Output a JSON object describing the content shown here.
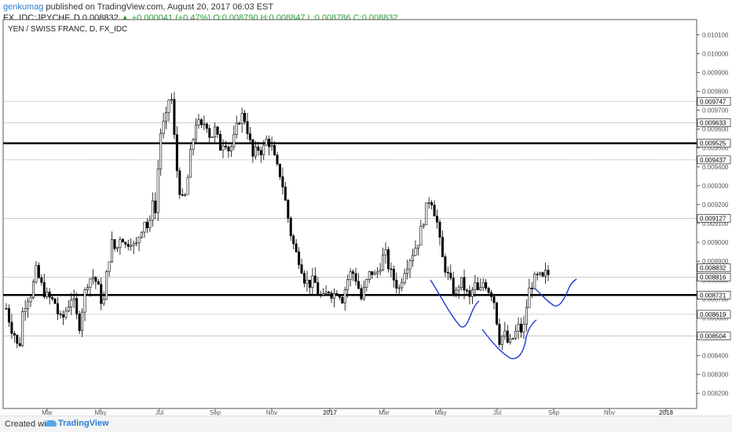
{
  "header": {
    "user": "genkumag",
    "published": " published on TradingView.com, August 20, 2017 06:03 EST",
    "symbol_line": "FX_IDC:JPYCHF, D  0.008832 ",
    "change": "▲ +0.000041 (+0.47%)",
    "ohlc": " O:0.008790 H:0.008847 L:0.008786 C:0.008832"
  },
  "chart_data": {
    "type": "candlestick",
    "title": "YEN / SWISS FRANC, D, FX_IDC",
    "x_tick_labels": [
      "Mar",
      "May",
      "Jul",
      "Sep",
      "Nov",
      "2017",
      "Mar",
      "May",
      "Jul",
      "Sep",
      "Nov",
      "2018"
    ],
    "y_tick_labels": [
      "0.010100",
      "0.010000",
      "0.009900",
      "0.009800",
      "0.009700",
      "0.009600",
      "0.009500",
      "0.009400",
      "0.009300",
      "0.009200",
      "0.009100",
      "0.009000",
      "0.008900",
      "0.008800",
      "0.008700",
      "0.008600",
      "0.008500",
      "0.008400",
      "0.008300",
      "0.008200"
    ],
    "y_ticks": [
      0.0101,
      0.01,
      0.0099,
      0.0098,
      0.0097,
      0.0096,
      0.0095,
      0.0094,
      0.0093,
      0.0092,
      0.0091,
      0.009,
      0.0089,
      0.0088,
      0.0087,
      0.0086,
      0.0085,
      0.0084,
      0.0083,
      0.0082
    ],
    "ylim": [
      0.00812,
      0.01018
    ],
    "horizontal_lines": [
      {
        "value": 0.009747,
        "label": "0.009747",
        "style": "dotted"
      },
      {
        "value": 0.009633,
        "label": "0.009633",
        "style": "dotted"
      },
      {
        "value": 0.009525,
        "label": "0.009525",
        "style": "bold"
      },
      {
        "value": 0.009437,
        "label": "0.009437",
        "style": "dotted"
      },
      {
        "value": 0.009127,
        "label": "0.009127",
        "style": "dotted"
      },
      {
        "value": 0.008816,
        "label": "0.008816",
        "style": "dotted"
      },
      {
        "value": 0.008721,
        "label": "0.008721",
        "style": "bold"
      },
      {
        "value": 0.008619,
        "label": "0.008619",
        "style": "dotted"
      },
      {
        "value": 0.008504,
        "label": "0.008504",
        "style": "dotted"
      }
    ],
    "last_price": {
      "value": 0.008832,
      "label": "0.008832"
    },
    "price_path": [
      [
        0,
        0.00865
      ],
      [
        6,
        0.00855
      ],
      [
        12,
        0.0085
      ],
      [
        16,
        0.0084
      ],
      [
        20,
        0.00862
      ],
      [
        26,
        0.0087
      ],
      [
        32,
        0.00873
      ],
      [
        38,
        0.00885
      ],
      [
        44,
        0.00878
      ],
      [
        50,
        0.00872
      ],
      [
        56,
        0.0087
      ],
      [
        62,
        0.00868
      ],
      [
        66,
        0.00862
      ],
      [
        70,
        0.00858
      ],
      [
        74,
        0.00862
      ],
      [
        78,
        0.00866
      ],
      [
        84,
        0.00872
      ],
      [
        90,
        0.0086
      ],
      [
        94,
        0.00855
      ],
      [
        98,
        0.0087
      ],
      [
        104,
        0.0088
      ],
      [
        110,
        0.00882
      ],
      [
        116,
        0.00878
      ],
      [
        120,
        0.0087
      ],
      [
        124,
        0.00868
      ],
      [
        128,
        0.00884
      ],
      [
        134,
        0.009
      ],
      [
        140,
        0.00895
      ],
      [
        146,
        0.00905
      ],
      [
        152,
        0.00898
      ],
      [
        158,
        0.00902
      ],
      [
        164,
        0.00896
      ],
      [
        170,
        0.00905
      ],
      [
        176,
        0.00912
      ],
      [
        182,
        0.00905
      ],
      [
        186,
        0.00925
      ],
      [
        190,
        0.00915
      ],
      [
        194,
        0.00945
      ],
      [
        198,
        0.00965
      ],
      [
        202,
        0.0096
      ],
      [
        206,
        0.00975
      ],
      [
        210,
        0.00978
      ],
      [
        214,
        0.00955
      ],
      [
        218,
        0.00935
      ],
      [
        222,
        0.00925
      ],
      [
        226,
        0.0092
      ],
      [
        230,
        0.0093
      ],
      [
        234,
        0.00945
      ],
      [
        238,
        0.00955
      ],
      [
        242,
        0.00965
      ],
      [
        248,
        0.0096
      ],
      [
        254,
        0.00965
      ],
      [
        260,
        0.00955
      ],
      [
        266,
        0.0096
      ],
      [
        272,
        0.0095
      ],
      [
        278,
        0.00955
      ],
      [
        284,
        0.00948
      ],
      [
        290,
        0.00955
      ],
      [
        296,
        0.00965
      ],
      [
        302,
        0.00968
      ],
      [
        308,
        0.00958
      ],
      [
        314,
        0.00945
      ],
      [
        320,
        0.0095
      ],
      [
        326,
        0.00948
      ],
      [
        332,
        0.00955
      ],
      [
        338,
        0.0095
      ],
      [
        344,
        0.0094
      ],
      [
        350,
        0.00935
      ],
      [
        356,
        0.0092
      ],
      [
        362,
        0.00905
      ],
      [
        368,
        0.00895
      ],
      [
        374,
        0.0089
      ],
      [
        380,
        0.0088
      ],
      [
        386,
        0.00878
      ],
      [
        392,
        0.0088
      ],
      [
        398,
        0.00872
      ],
      [
        404,
        0.0087
      ],
      [
        410,
        0.00875
      ],
      [
        416,
        0.00872
      ],
      [
        422,
        0.00875
      ],
      [
        428,
        0.0087
      ],
      [
        434,
        0.0088
      ],
      [
        440,
        0.00885
      ],
      [
        446,
        0.0088
      ],
      [
        452,
        0.0087
      ],
      [
        458,
        0.00878
      ],
      [
        464,
        0.00885
      ],
      [
        470,
        0.00882
      ],
      [
        476,
        0.00888
      ],
      [
        482,
        0.00895
      ],
      [
        488,
        0.00885
      ],
      [
        494,
        0.0088
      ],
      [
        500,
        0.00875
      ],
      [
        506,
        0.00885
      ],
      [
        512,
        0.0089
      ],
      [
        518,
        0.00895
      ],
      [
        524,
        0.009
      ],
      [
        530,
        0.0091
      ],
      [
        536,
        0.0092
      ],
      [
        540,
        0.00925
      ],
      [
        544,
        0.00918
      ],
      [
        548,
        0.00912
      ],
      [
        552,
        0.009
      ],
      [
        556,
        0.0089
      ],
      [
        560,
        0.00885
      ],
      [
        566,
        0.00878
      ],
      [
        572,
        0.00872
      ],
      [
        578,
        0.0088
      ],
      [
        584,
        0.00875
      ],
      [
        590,
        0.0087
      ],
      [
        596,
        0.00878
      ],
      [
        602,
        0.00872
      ],
      [
        608,
        0.0088
      ],
      [
        614,
        0.00875
      ],
      [
        620,
        0.00872
      ],
      [
        624,
        0.0086
      ],
      [
        628,
        0.00848
      ],
      [
        634,
        0.00852
      ],
      [
        640,
        0.00845
      ],
      [
        646,
        0.0085
      ],
      [
        652,
        0.00855
      ],
      [
        658,
        0.00852
      ],
      [
        662,
        0.00865
      ],
      [
        666,
        0.00875
      ],
      [
        672,
        0.0088
      ],
      [
        678,
        0.00882
      ],
      [
        684,
        0.0088
      ],
      [
        688,
        0.00885
      ],
      [
        690,
        0.00883
      ]
    ],
    "drawings": [
      "blue-curve-left",
      "blue-curve-center",
      "blue-curve-right"
    ],
    "colors": {
      "candle": "#000000",
      "drawing": "#1f3ad1",
      "grid_line": "#888888",
      "bold_line": "#000000"
    }
  },
  "footer": {
    "created": "Created with",
    "brand": "TradingView"
  }
}
